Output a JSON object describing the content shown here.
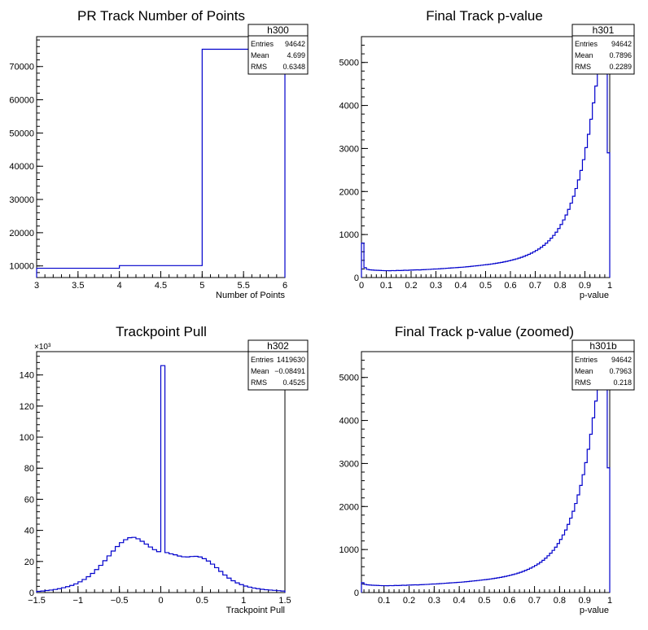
{
  "chart_data": [
    {
      "id": "h300",
      "type": "histogram",
      "title": "PR Track Number of Points",
      "xlabel": "Number of Points",
      "ylabel": "",
      "xlim": [
        3,
        6
      ],
      "ylim": [
        6500,
        79000
      ],
      "x_ticks": [
        3,
        3.5,
        4,
        4.5,
        5,
        5.5,
        6
      ],
      "x_tick_labels": [
        "3",
        "3.5",
        "4",
        "4.5",
        "5",
        "5.5",
        "6"
      ],
      "y_ticks": [
        10000,
        20000,
        30000,
        40000,
        50000,
        60000,
        70000
      ],
      "y_tick_labels": [
        "10000",
        "20000",
        "30000",
        "40000",
        "50000",
        "60000",
        "70000"
      ],
      "y_exponent_label": "",
      "bins": {
        "edges": [
          3,
          4,
          5,
          6
        ],
        "values": [
          9300,
          10100,
          75200
        ]
      },
      "stats": {
        "name": "h300",
        "rows": [
          {
            "label": "Entries",
            "value": "94642"
          },
          {
            "label": "Mean",
            "value": "4.699"
          },
          {
            "label": "RMS",
            "value": "0.6348"
          }
        ]
      },
      "line_color": "#0000cc",
      "grid": false
    },
    {
      "id": "h301",
      "type": "histogram",
      "title": "Final Track p-value",
      "xlabel": "p-value",
      "ylabel": "",
      "xlim": [
        0,
        1
      ],
      "ylim": [
        0,
        5600
      ],
      "x_ticks": [
        0,
        0.1,
        0.2,
        0.3,
        0.4,
        0.5,
        0.6,
        0.7,
        0.8,
        0.9,
        1
      ],
      "x_tick_labels": [
        "0",
        "0.1",
        "0.2",
        "0.3",
        "0.4",
        "0.5",
        "0.6",
        "0.7",
        "0.8",
        "0.9",
        "1"
      ],
      "y_ticks": [
        0,
        1000,
        2000,
        3000,
        4000,
        5000
      ],
      "y_tick_labels": [
        "0",
        "1000",
        "2000",
        "3000",
        "4000",
        "5000"
      ],
      "y_exponent_label": "",
      "bins": {
        "start": 0,
        "width": 0.01,
        "values": [
          800,
          230,
          190,
          180,
          175,
          170,
          168,
          165,
          162,
          160,
          160,
          158,
          162,
          160,
          165,
          163,
          165,
          170,
          168,
          172,
          175,
          178,
          180,
          178,
          182,
          185,
          188,
          190,
          195,
          198,
          200,
          203,
          208,
          212,
          216,
          220,
          224,
          228,
          232,
          236,
          240,
          245,
          250,
          256,
          262,
          268,
          274,
          280,
          287,
          294,
          300,
          308,
          316,
          324,
          333,
          343,
          353,
          364,
          376,
          389,
          403,
          418,
          434,
          452,
          471,
          492,
          515,
          540,
          567,
          597,
          630,
          665,
          705,
          750,
          800,
          855,
          915,
          980,
          1055,
          1140,
          1235,
          1340,
          1455,
          1585,
          1730,
          1890,
          2070,
          2270,
          2490,
          2740,
          3020,
          3330,
          3680,
          4060,
          4450,
          4820,
          4790,
          4750,
          5350,
          2900
        ]
      },
      "stats": {
        "name": "h301",
        "rows": [
          {
            "label": "Entries",
            "value": "94642"
          },
          {
            "label": "Mean",
            "value": "0.7896"
          },
          {
            "label": "RMS",
            "value": "0.2289"
          }
        ]
      },
      "line_color": "#0000cc",
      "grid": false
    },
    {
      "id": "h302",
      "type": "histogram",
      "title": "Trackpoint Pull",
      "xlabel": "Trackpoint Pull",
      "ylabel": "",
      "xlim": [
        -1.5,
        1.5
      ],
      "ylim": [
        0,
        155
      ],
      "x_ticks": [
        -1.5,
        -1,
        -0.5,
        0,
        0.5,
        1,
        1.5
      ],
      "x_tick_labels": [
        "−1.5",
        "−1",
        "−0.5",
        "0",
        "0.5",
        "1",
        "1.5"
      ],
      "y_ticks": [
        0,
        20,
        40,
        60,
        80,
        100,
        120,
        140
      ],
      "y_tick_labels": [
        "0",
        "20",
        "40",
        "60",
        "80",
        "100",
        "120",
        "140"
      ],
      "y_exponent_label": "×10³",
      "bins": {
        "start": -1.5,
        "width": 0.05,
        "values": [
          0.8,
          1.0,
          1.3,
          1.6,
          2.0,
          2.5,
          3.1,
          3.8,
          4.6,
          5.6,
          6.9,
          8.4,
          10.2,
          12.3,
          14.8,
          17.5,
          20.5,
          23.6,
          26.7,
          29.6,
          32.1,
          34.0,
          35.3,
          35.5,
          34.6,
          33.0,
          31.2,
          29.3,
          27.6,
          26.3,
          146.0,
          25.7,
          24.9,
          24.3,
          23.5,
          23.0,
          22.9,
          23.2,
          23.3,
          22.9,
          21.8,
          20.3,
          18.3,
          16.0,
          13.6,
          11.3,
          9.3,
          7.6,
          6.2,
          5.1,
          4.2,
          3.5,
          2.9,
          2.5,
          2.1,
          1.8,
          1.6,
          1.4,
          1.2,
          1.0
        ]
      },
      "stats": {
        "name": "h302",
        "rows": [
          {
            "label": "Entries",
            "value": "1419630"
          },
          {
            "label": "Mean",
            "value": "−0.08491"
          },
          {
            "label": "RMS",
            "value": "0.4525"
          }
        ]
      },
      "line_color": "#0000cc",
      "grid": false
    },
    {
      "id": "h301b",
      "type": "histogram",
      "title": "Final Track p-value (zoomed)",
      "xlabel": "p-value",
      "ylabel": "",
      "xlim": [
        0.01,
        1
      ],
      "ylim": [
        0,
        5600
      ],
      "x_ticks": [
        0.1,
        0.2,
        0.3,
        0.4,
        0.5,
        0.6,
        0.7,
        0.8,
        0.9,
        1
      ],
      "x_tick_labels": [
        "0.1",
        "0.2",
        "0.3",
        "0.4",
        "0.5",
        "0.6",
        "0.7",
        "0.8",
        "0.9",
        "1"
      ],
      "y_ticks": [
        0,
        1000,
        2000,
        3000,
        4000,
        5000
      ],
      "y_tick_labels": [
        "0",
        "1000",
        "2000",
        "3000",
        "4000",
        "5000"
      ],
      "y_exponent_label": "",
      "bins": {
        "start": 0.01,
        "width": 0.01,
        "values": [
          230,
          190,
          180,
          175,
          170,
          168,
          165,
          162,
          160,
          160,
          158,
          162,
          160,
          165,
          163,
          165,
          170,
          168,
          172,
          175,
          178,
          180,
          178,
          182,
          185,
          188,
          190,
          195,
          198,
          200,
          203,
          208,
          212,
          216,
          220,
          224,
          228,
          232,
          236,
          240,
          245,
          250,
          256,
          262,
          268,
          274,
          280,
          287,
          294,
          300,
          308,
          316,
          324,
          333,
          343,
          353,
          364,
          376,
          389,
          403,
          418,
          434,
          452,
          471,
          492,
          515,
          540,
          567,
          597,
          630,
          665,
          705,
          750,
          800,
          855,
          915,
          980,
          1055,
          1140,
          1235,
          1340,
          1455,
          1585,
          1730,
          1890,
          2070,
          2270,
          2490,
          2740,
          3020,
          3330,
          3680,
          4060,
          4450,
          4820,
          4790,
          4750,
          5350,
          2900
        ]
      },
      "stats": {
        "name": "h301b",
        "rows": [
          {
            "label": "Entries",
            "value": "94642"
          },
          {
            "label": "Mean",
            "value": "0.7963"
          },
          {
            "label": "RMS",
            "value": "0.218"
          }
        ]
      },
      "line_color": "#0000cc",
      "grid": false
    }
  ]
}
